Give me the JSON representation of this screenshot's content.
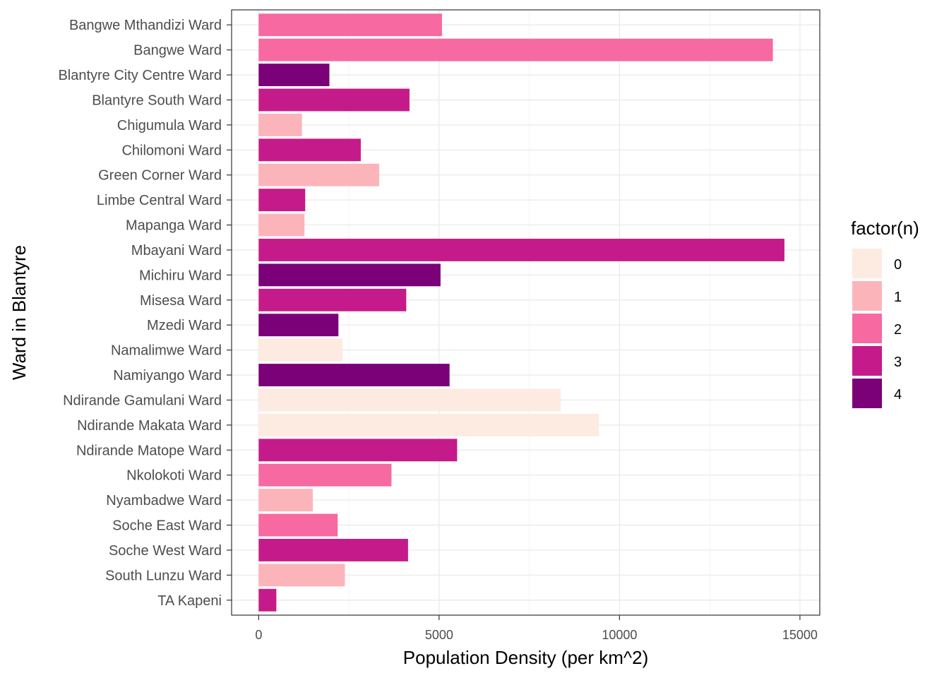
{
  "chart_data": {
    "type": "bar",
    "orientation": "horizontal",
    "xlabel": "Population Density (per km^2)",
    "ylabel": "Ward in Blantyre",
    "xlim": [
      -750,
      15550
    ],
    "xticks": [
      "0",
      "5000",
      "10000",
      "15000"
    ],
    "xtick_values": [
      0,
      5000,
      10000,
      15000
    ],
    "grid": true,
    "legend": {
      "title": "factor(n)",
      "position": "right",
      "levels": [
        "0",
        "1",
        "2",
        "3",
        "4"
      ],
      "colors": [
        "#FDEAE1",
        "#FBB5BA",
        "#F769A1",
        "#C51B8A",
        "#7A0177"
      ]
    },
    "categories": [
      "Bangwe Mthandizi Ward",
      "Bangwe Ward",
      "Blantyre City Centre Ward",
      "Blantyre South Ward",
      "Chigumula Ward",
      "Chilomoni Ward",
      "Green Corner Ward",
      "Limbe Central Ward",
      "Mapanga Ward",
      "Mbayani Ward",
      "Michiru Ward",
      "Misesa Ward",
      "Mzedi Ward",
      "Namalimwe Ward",
      "Namiyango Ward",
      "Ndirande Gamulani Ward",
      "Ndirande Makata Ward",
      "Ndirande Matope Ward",
      "Nkolokoti Ward",
      "Nyambadwe Ward",
      "Soche East Ward",
      "Soche West Ward",
      "South Lunzu Ward",
      "TA Kapeni"
    ],
    "values": [
      5080,
      14250,
      1960,
      4180,
      1200,
      2830,
      3340,
      1290,
      1270,
      14570,
      5040,
      4090,
      2210,
      2320,
      5290,
      8370,
      9430,
      5500,
      3680,
      1500,
      2190,
      4140,
      2390,
      490
    ],
    "groups": [
      "2",
      "2",
      "4",
      "3",
      "1",
      "3",
      "1",
      "3",
      "1",
      "3",
      "4",
      "3",
      "4",
      "0",
      "4",
      "0",
      "0",
      "3",
      "2",
      "1",
      "2",
      "3",
      "1",
      "3"
    ]
  }
}
